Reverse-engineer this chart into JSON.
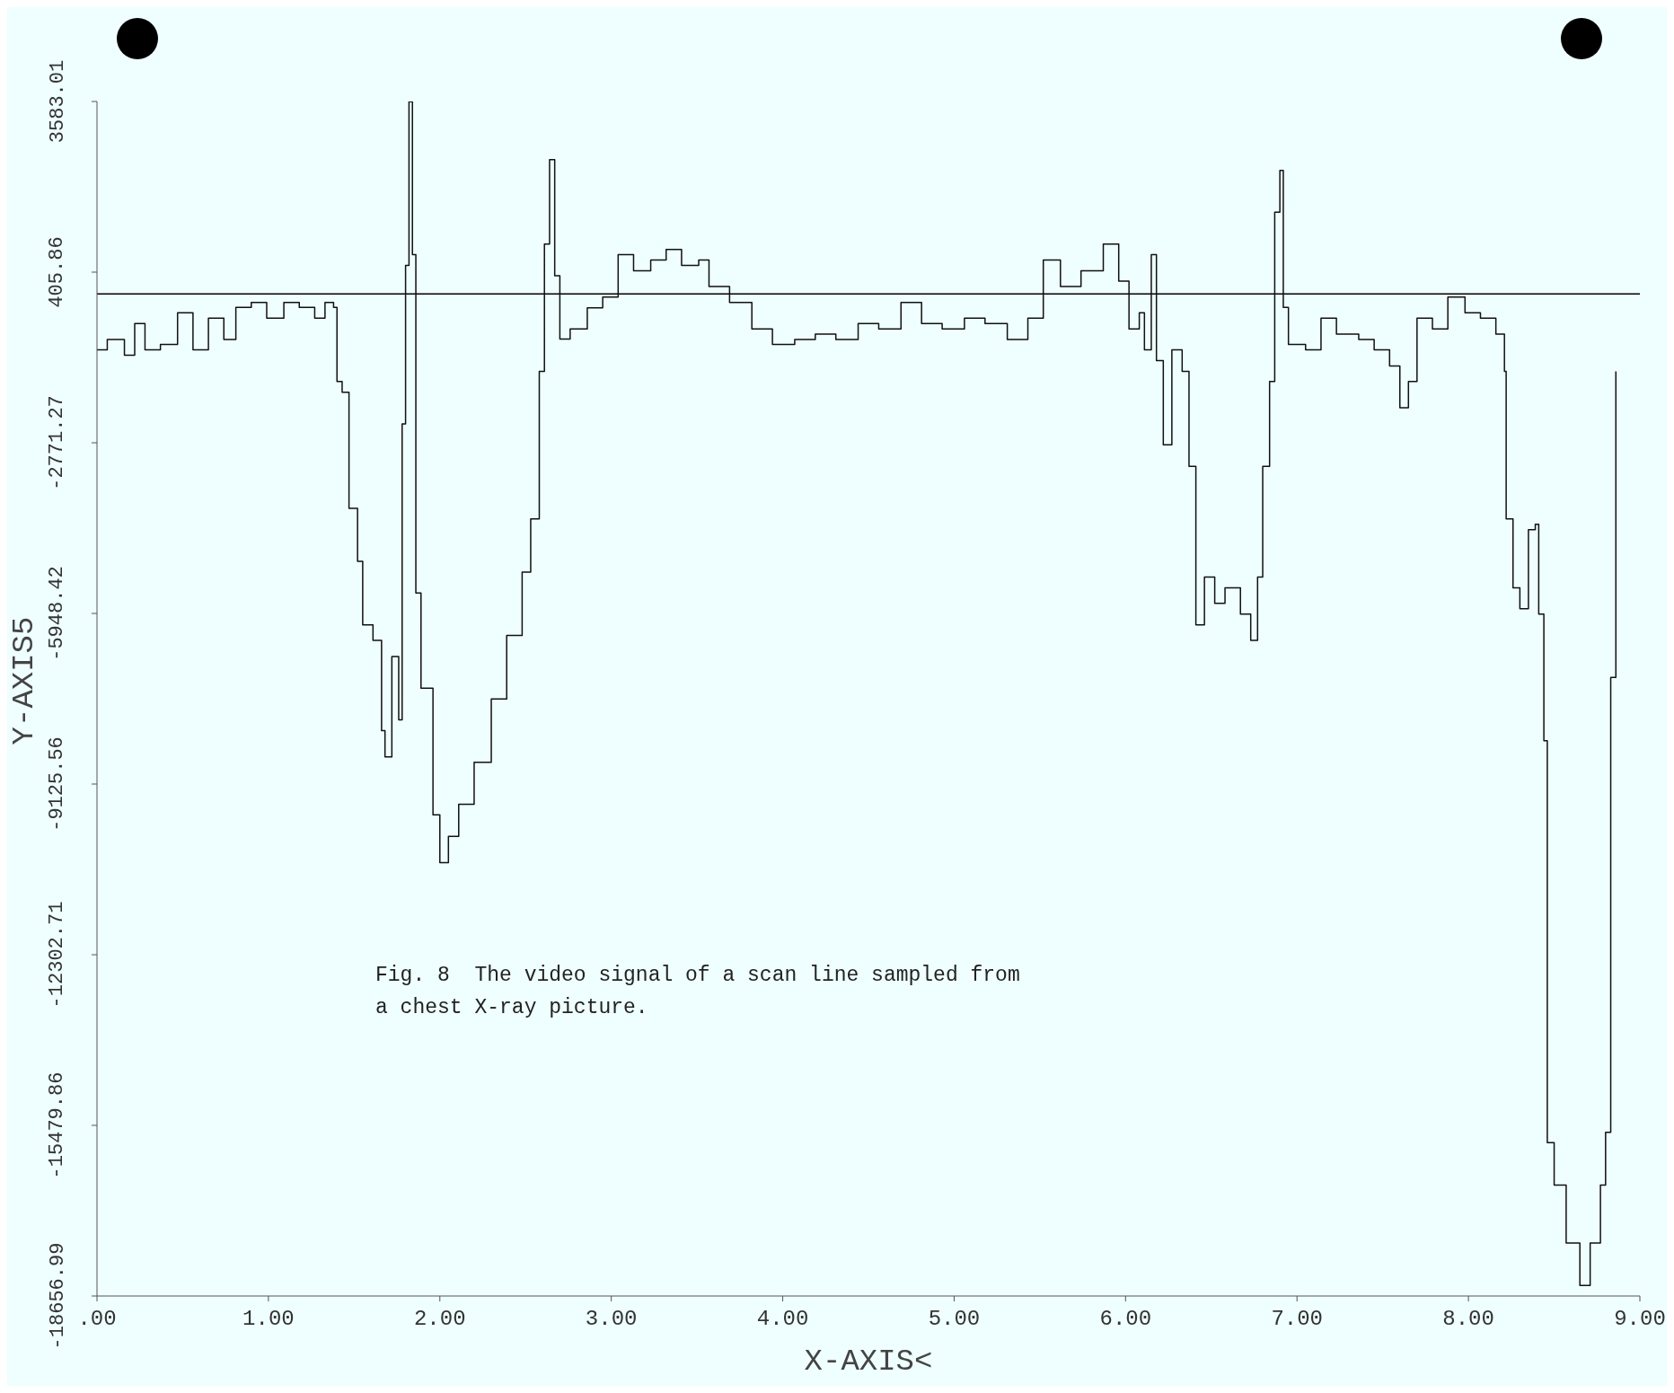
{
  "chart_data": {
    "type": "step",
    "xlabel": "X-AXIS<",
    "ylabel": "Y-AXIS5",
    "annotations": [
      "Fig. 8  The video signal of a scan line sampled from a chest X-ray picture."
    ],
    "xlim": [
      0,
      9
    ],
    "xticks": [
      {
        "value": 0,
        "label": ".00"
      },
      {
        "value": 1,
        "label": "1.00"
      },
      {
        "value": 2,
        "label": "2.00"
      },
      {
        "value": 3,
        "label": "3.00"
      },
      {
        "value": 4,
        "label": "4.00"
      },
      {
        "value": 5,
        "label": "5.00"
      },
      {
        "value": 6,
        "label": "6.00"
      },
      {
        "value": 7,
        "label": "7.00"
      },
      {
        "value": 8,
        "label": "8.00"
      },
      {
        "value": 9,
        "label": "9.00"
      }
    ],
    "ylim": [
      -18656.99,
      3583.01
    ],
    "yticks": [
      -18656.99,
      -15479.86,
      -12302.71,
      -9125.56,
      -5948.42,
      -2771.27,
      405.86,
      3583.01
    ],
    "ref_lines": [
      {
        "axis": "y",
        "value": 0,
        "color": "#000000"
      }
    ],
    "grid": false,
    "legend": false,
    "marker": "none",
    "line_style": "solid",
    "series": [
      {
        "color": "#111111",
        "x": [
          0,
          0.06,
          0.16,
          0.22,
          0.28,
          0.37,
          0.47,
          0.56,
          0.65,
          0.74,
          0.81,
          0.9,
          0.99,
          1.09,
          1.18,
          1.27,
          1.33,
          1.38,
          1.4,
          1.43,
          1.47,
          1.52,
          1.55,
          1.61,
          1.66,
          1.68,
          1.72,
          1.76,
          1.78,
          1.8,
          1.82,
          1.84,
          1.86,
          1.89,
          1.96,
          2.0,
          2.05,
          2.11,
          2.2,
          2.3,
          2.39,
          2.48,
          2.53,
          2.58,
          2.61,
          2.64,
          2.67,
          2.7,
          2.76,
          2.86,
          2.95,
          3.04,
          3.13,
          3.23,
          3.32,
          3.41,
          3.51,
          3.57,
          3.69,
          3.82,
          3.94,
          4.07,
          4.19,
          4.31,
          4.44,
          4.56,
          4.69,
          4.81,
          4.93,
          5.06,
          5.18,
          5.31,
          5.43,
          5.52,
          5.62,
          5.74,
          5.87,
          5.96,
          6.02,
          6.08,
          6.11,
          6.15,
          6.18,
          6.22,
          6.27,
          6.33,
          6.37,
          6.41,
          6.46,
          6.52,
          6.58,
          6.67,
          6.73,
          6.77,
          6.8,
          6.84,
          6.87,
          6.9,
          6.92,
          6.95,
          7.05,
          7.14,
          7.23,
          7.36,
          7.45,
          7.54,
          7.6,
          7.65,
          7.7,
          7.79,
          7.88,
          7.98,
          8.07,
          8.16,
          8.21,
          8.22,
          8.26,
          8.3,
          8.35,
          8.39,
          8.41,
          8.44,
          8.46,
          8.5,
          8.57,
          8.65,
          8.71,
          8.77,
          8.8,
          8.83,
          8.86
        ],
        "values": [
          -1040,
          -850,
          -1140,
          -550,
          -1040,
          -940,
          -350,
          -1040,
          -450,
          -850,
          -250,
          -160,
          -450,
          -160,
          -250,
          -450,
          -160,
          -250,
          -1630,
          -1830,
          -3990,
          -4980,
          -6160,
          -6450,
          -8130,
          -8620,
          -6750,
          -7930,
          -2420,
          530,
          3580,
          730,
          -5570,
          -7340,
          -9700,
          -10590,
          -10100,
          -9500,
          -8720,
          -7540,
          -6360,
          -5180,
          -4190,
          -1440,
          930,
          2500,
          340,
          -840,
          -650,
          -260,
          -60,
          730,
          430,
          630,
          830,
          530,
          630,
          140,
          -160,
          -650,
          -940,
          -850,
          -750,
          -850,
          -550,
          -650,
          -160,
          -550,
          -650,
          -450,
          -550,
          -850,
          -450,
          630,
          140,
          430,
          930,
          240,
          -650,
          -350,
          -1040,
          730,
          -1240,
          -2810,
          -1040,
          -1440,
          -3210,
          -6160,
          -5270,
          -5760,
          -5470,
          -5960,
          -6450,
          -5270,
          -3210,
          -1630,
          1520,
          2300,
          -250,
          -940,
          -1040,
          -450,
          -750,
          -850,
          -1040,
          -1340,
          -2120,
          -1630,
          -450,
          -650,
          -60,
          -350,
          -450,
          -750,
          -1440,
          -4190,
          -5470,
          -5860,
          -4390,
          -4290,
          -5960,
          -8320,
          -15800,
          -16590,
          -17670,
          -18460,
          -17670,
          -16590,
          -15610,
          -7140,
          -1440
        ]
      }
    ]
  }
}
